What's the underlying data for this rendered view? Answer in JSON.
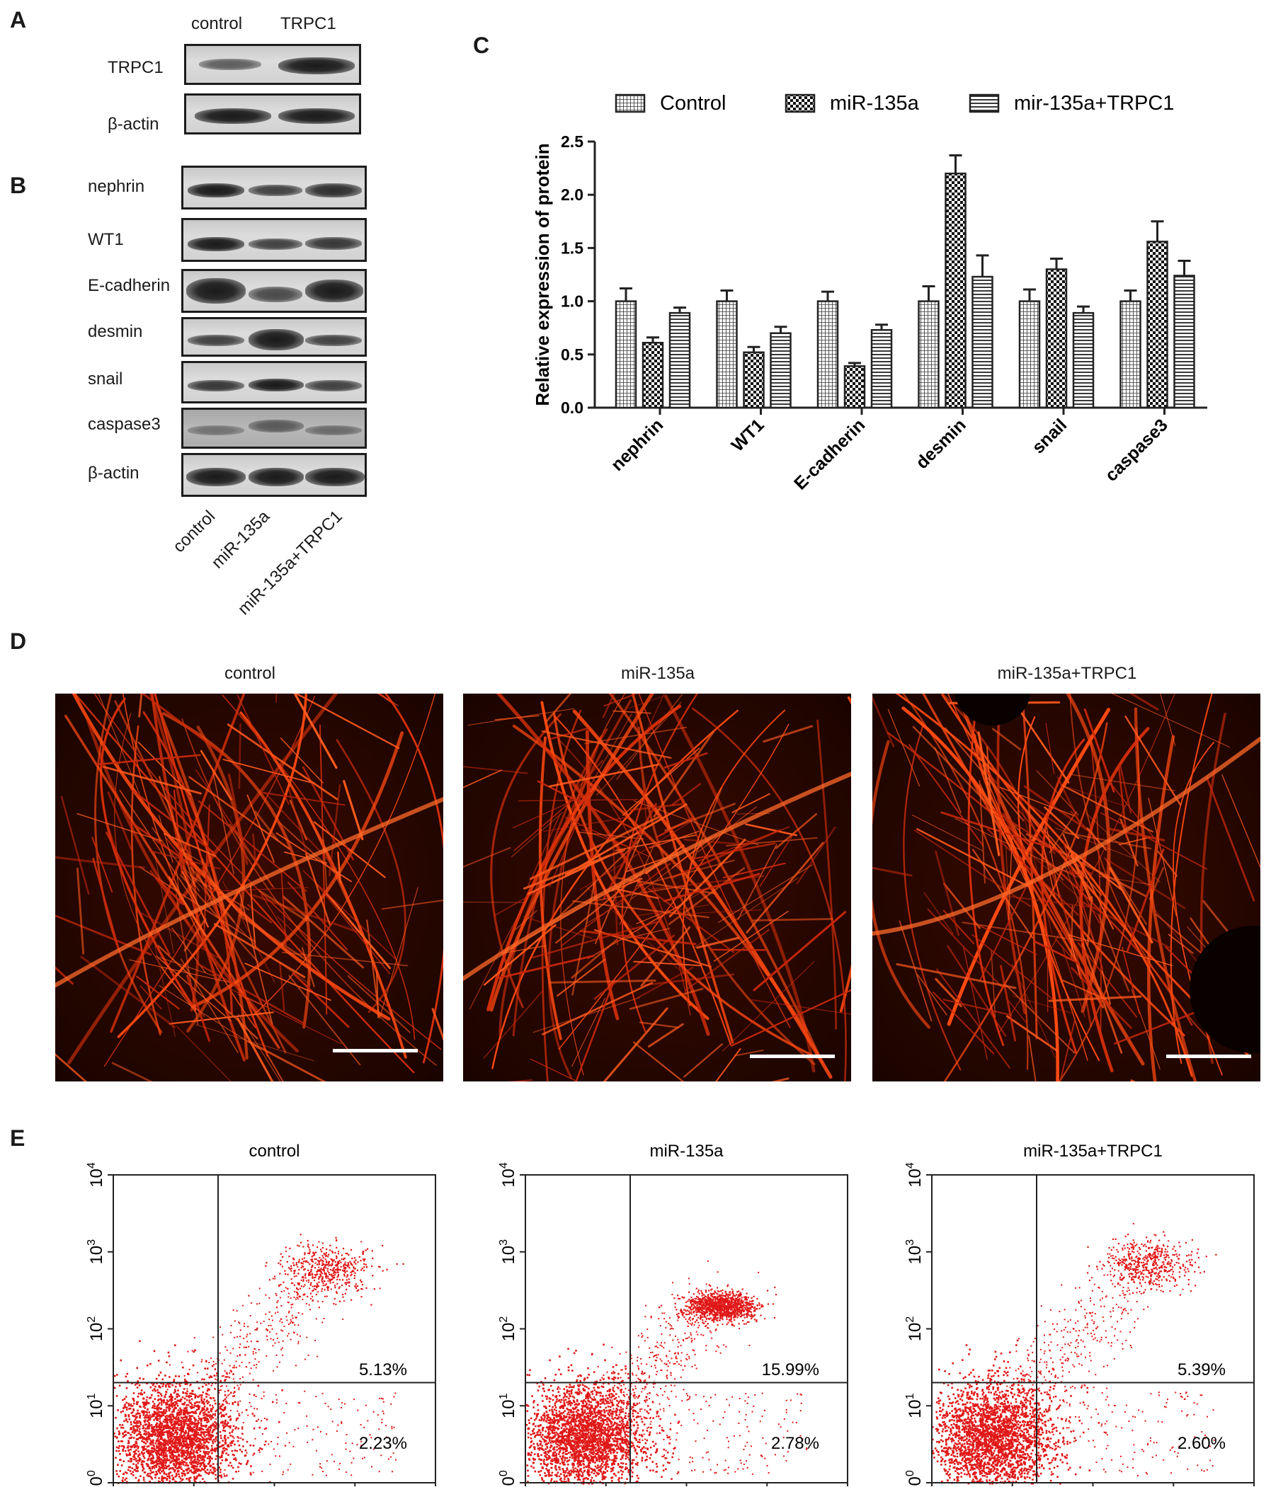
{
  "panels": {
    "a": {
      "letter": "A",
      "columns": [
        "control",
        "TRPC1"
      ],
      "rows": [
        "TRPC1",
        "β-actin"
      ]
    },
    "b": {
      "letter": "B",
      "rows": [
        "nephrin",
        "WT1",
        "E-cadherin",
        "desmin",
        "snail",
        "caspase3",
        "β-actin"
      ],
      "lanes": [
        "control",
        "miR-135a",
        "miR-135a+TRPC1"
      ]
    },
    "c": {
      "letter": "C"
    },
    "d": {
      "letter": "D",
      "titles": [
        "control",
        "miR-135a",
        "miR-135a+TRPC1"
      ]
    },
    "e": {
      "letter": "E",
      "titles": [
        "control",
        "miR-135a",
        "miR-135a+TRPC1"
      ],
      "upper_right_pct": [
        "5.13%",
        "15.99%",
        "5.39%"
      ],
      "lower_right_pct": [
        "2.23%",
        "2.78%",
        "2.60%"
      ],
      "axis_ticks": [
        "0",
        "1",
        "2",
        "3",
        "4"
      ],
      "axis_base": "10"
    }
  },
  "chart_data": [
    {
      "type": "bar",
      "panel": "C",
      "categories": [
        "nephrin",
        "WT1",
        "E-cadherin",
        "desmin",
        "snail",
        "caspase3"
      ],
      "series": [
        {
          "name": "Control",
          "values": [
            1.0,
            1.0,
            1.0,
            1.0,
            1.0,
            1.0
          ],
          "errors": [
            0.12,
            0.1,
            0.09,
            0.14,
            0.11,
            0.1
          ]
        },
        {
          "name": "miR-135a",
          "values": [
            0.61,
            0.52,
            0.39,
            2.2,
            1.3,
            1.56
          ],
          "errors": [
            0.05,
            0.05,
            0.03,
            0.17,
            0.1,
            0.19
          ]
        },
        {
          "name": "mir-135a+TRPC1",
          "values": [
            0.89,
            0.7,
            0.73,
            1.23,
            0.89,
            1.24
          ],
          "errors": [
            0.05,
            0.06,
            0.05,
            0.2,
            0.06,
            0.14
          ]
        }
      ],
      "ylabel": "Relative expression of protein",
      "ylim": [
        0,
        2.5
      ],
      "yticks": [
        "0.0",
        "0.5",
        "1.0",
        "1.5",
        "2.0",
        "2.5"
      ],
      "legend_position": "top"
    },
    {
      "type": "scatter",
      "panel": "E",
      "x_scale": "log",
      "y_scale": "log",
      "xlim": [
        1,
        10000
      ],
      "ylim": [
        1,
        10000
      ],
      "quadrant_gate": [
        20,
        20
      ],
      "plots": [
        {
          "title": "control",
          "upper_right": "5.13%",
          "lower_right": "2.23%",
          "population_center": [
            450,
            600
          ]
        },
        {
          "title": "miR-135a",
          "upper_right": "15.99%",
          "lower_right": "2.78%",
          "population_center": [
            250,
            200
          ]
        },
        {
          "title": "miR-135a+TRPC1",
          "upper_right": "5.39%",
          "lower_right": "2.60%",
          "population_center": [
            500,
            700
          ]
        }
      ]
    }
  ],
  "colors": {
    "scatter_dot": "#e01818",
    "fluorescence": "#ff3a10",
    "ink": "#1a1a1a"
  }
}
